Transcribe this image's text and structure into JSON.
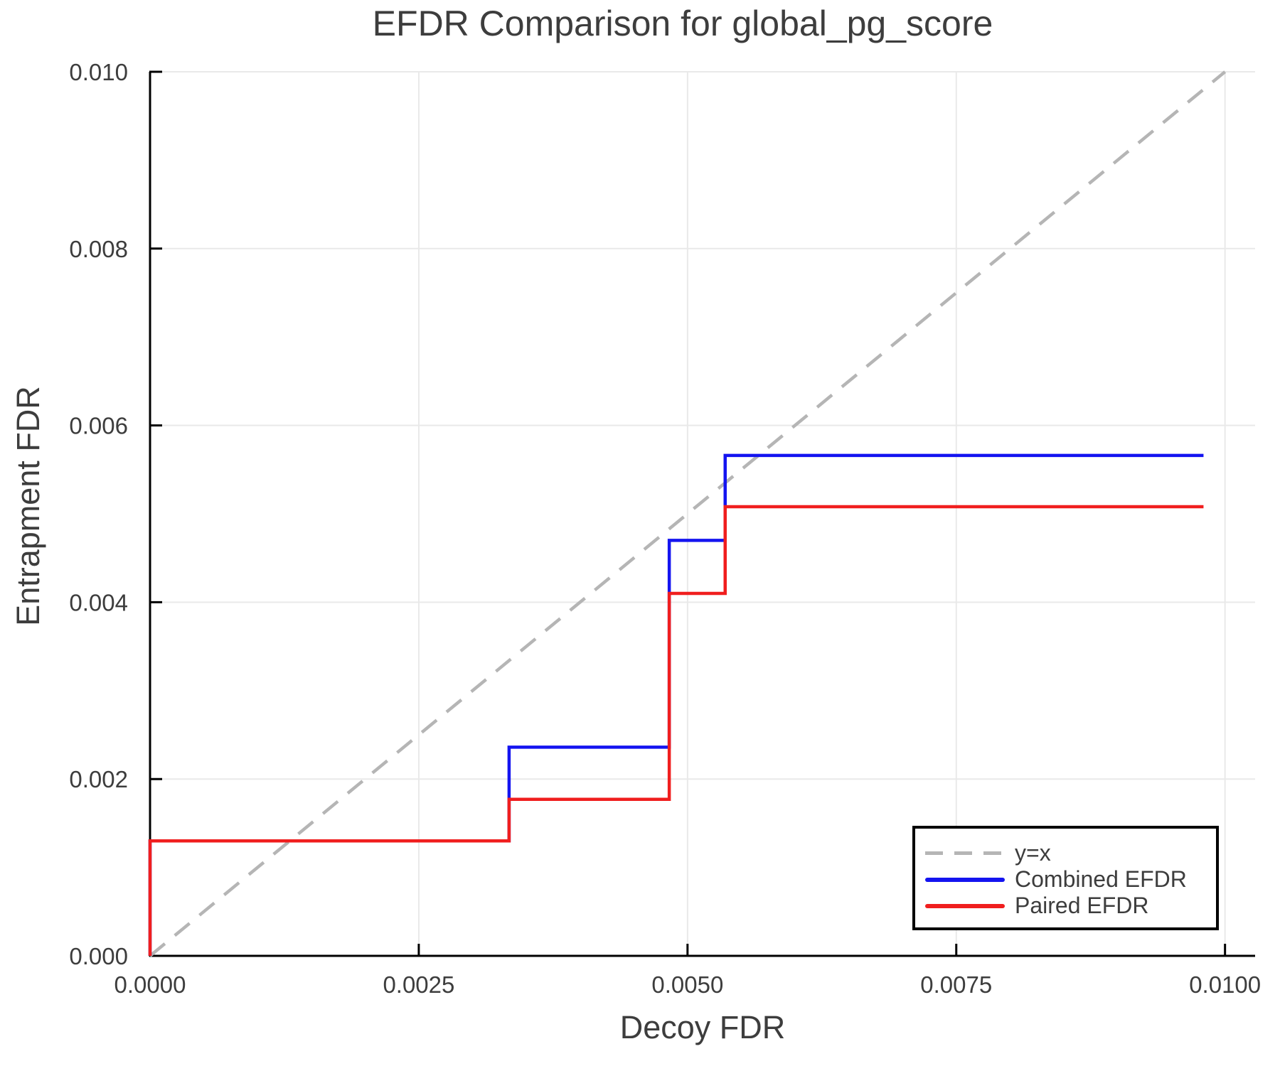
{
  "title": "EFDR Comparison for global_pg_score",
  "axes": {
    "xlabel": "Decoy FDR",
    "ylabel": "Entrapment FDR"
  },
  "colors": {
    "identity_line": "#b5b5b5",
    "combined_efdr": "#1414f0",
    "paired_efdr": "#f01e1e",
    "grid": "#e9e9e9",
    "axis": "#000000",
    "text": "#3d3d3d"
  },
  "legend": {
    "items": [
      {
        "label": "y=x"
      },
      {
        "label": "Combined EFDR"
      },
      {
        "label": "Paired EFDR"
      }
    ]
  },
  "chart_data": {
    "type": "line",
    "title": "EFDR Comparison for global_pg_score",
    "xlabel": "Decoy FDR",
    "ylabel": "Entrapment FDR",
    "xlim": [
      0,
      0.01028
    ],
    "ylim": [
      0,
      0.01
    ],
    "grid": true,
    "legend_position": "bottom-right",
    "x_ticks": {
      "values": [
        0.0,
        0.0025,
        0.005,
        0.0075,
        0.01
      ],
      "labels": [
        "0.0000",
        "0.0025",
        "0.0050",
        "0.0075",
        "0.0100"
      ]
    },
    "y_ticks": {
      "values": [
        0.0,
        0.002,
        0.004,
        0.006,
        0.008,
        0.01
      ],
      "labels": [
        "0.000",
        "0.002",
        "0.004",
        "0.006",
        "0.008",
        "0.010"
      ]
    },
    "series": [
      {
        "name": "y=x",
        "style": "dashed",
        "color": "#b5b5b5",
        "points": [
          [
            0,
            0
          ],
          [
            0.01,
            0.01
          ]
        ]
      },
      {
        "name": "Combined EFDR",
        "style": "solid",
        "color": "#1414f0",
        "points": [
          [
            0,
            0
          ],
          [
            0,
            0.0013
          ],
          [
            0.00334,
            0.0013
          ],
          [
            0.00334,
            0.00236
          ],
          [
            0.00483,
            0.00236
          ],
          [
            0.00483,
            0.0047
          ],
          [
            0.00535,
            0.0047
          ],
          [
            0.00535,
            0.00566
          ],
          [
            0.0098,
            0.00566
          ]
        ]
      },
      {
        "name": "Paired EFDR",
        "style": "solid",
        "color": "#f01e1e",
        "points": [
          [
            0,
            0
          ],
          [
            0,
            0.0013
          ],
          [
            0.00334,
            0.0013
          ],
          [
            0.00334,
            0.00177
          ],
          [
            0.00483,
            0.00177
          ],
          [
            0.00483,
            0.0041
          ],
          [
            0.00535,
            0.0041
          ],
          [
            0.00535,
            0.00508
          ],
          [
            0.0098,
            0.00508
          ]
        ]
      }
    ]
  }
}
